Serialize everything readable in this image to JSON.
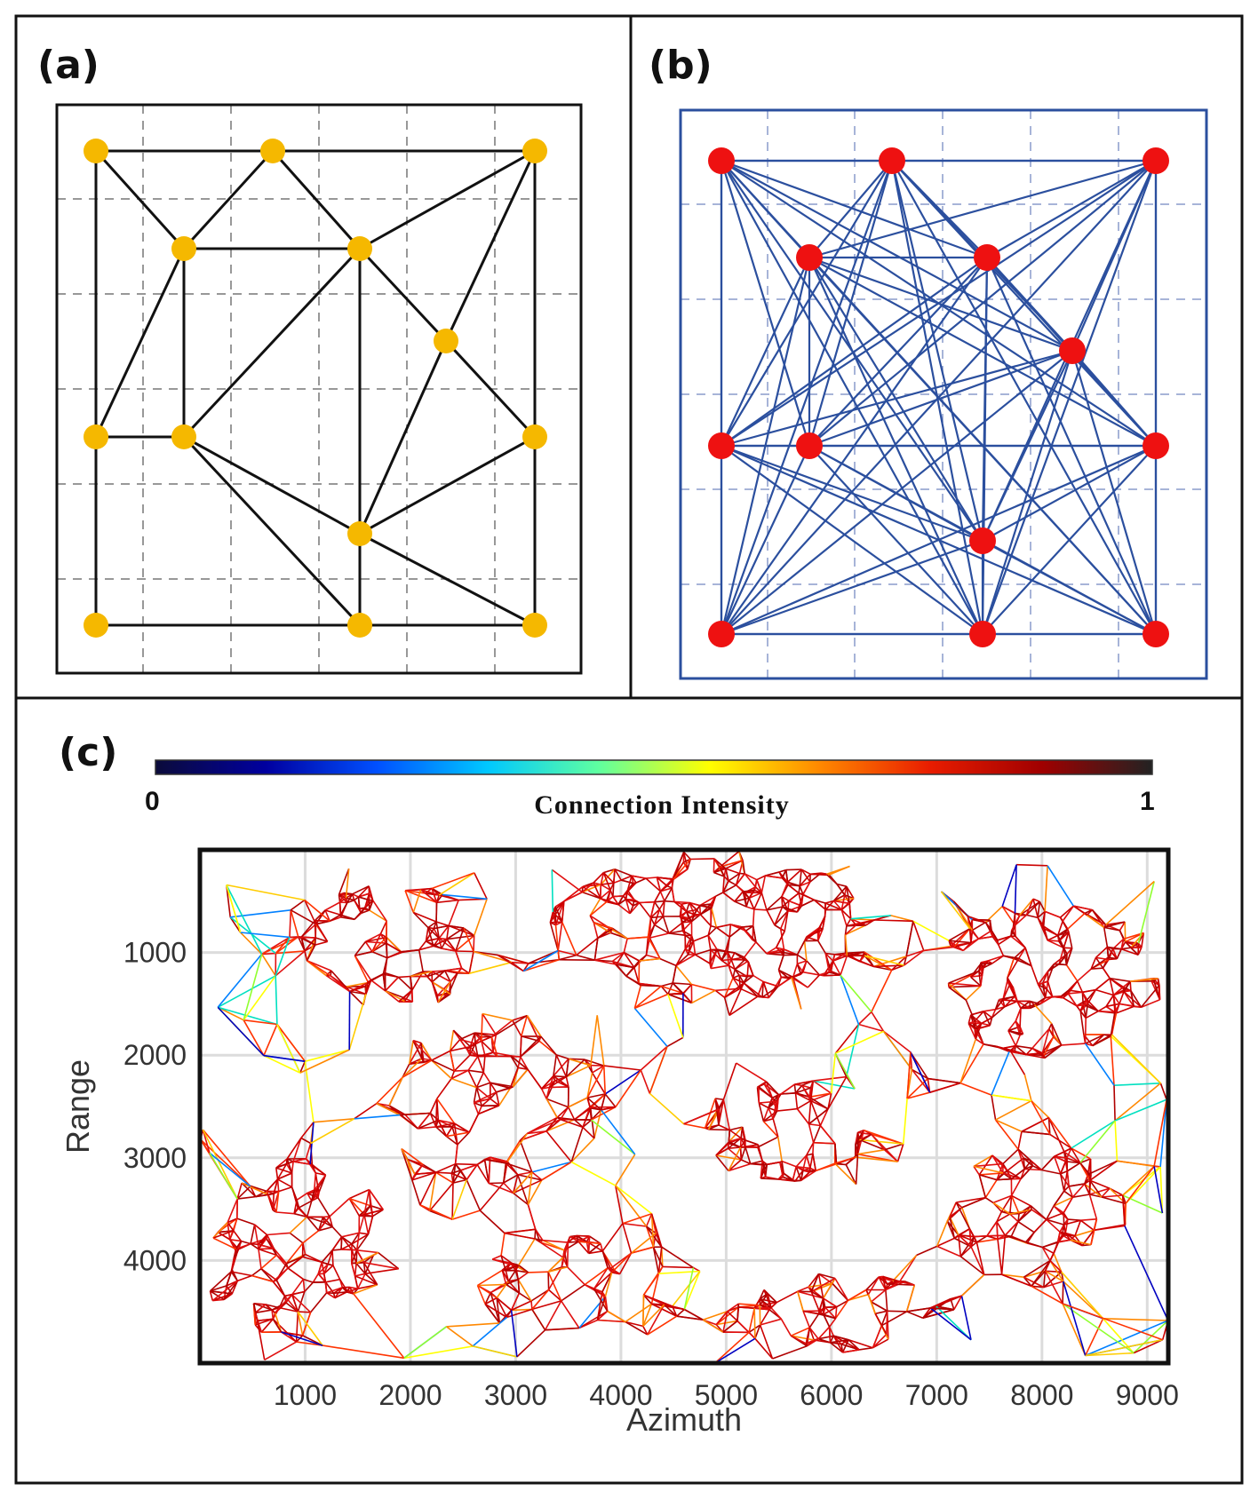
{
  "panels": {
    "a": {
      "label": "(a)",
      "line_color": "#111111",
      "node_color": "#f5b800"
    },
    "b": {
      "label": "(b)",
      "line_color": "#2b4f9e",
      "node_color": "#ee1111"
    },
    "c": {
      "label": "(c)"
    }
  },
  "colorbar": {
    "title": "Connection Intensity",
    "min_label": "0",
    "max_label": "1",
    "colormap": "jet",
    "stops": [
      "#0b0b3a",
      "#0000a0",
      "#0050ff",
      "#00c8ff",
      "#5fffa0",
      "#ffff00",
      "#ff8800",
      "#e81c00",
      "#a00000",
      "#222222"
    ]
  },
  "chart_data": {
    "type": "network",
    "title": "",
    "xlabel": "Azimuth",
    "ylabel": "Range",
    "xticks": [
      "1000",
      "2000",
      "3000",
      "4000",
      "5000",
      "6000",
      "7000",
      "8000",
      "9000"
    ],
    "yticks": [
      "1000",
      "2000",
      "3000",
      "4000"
    ],
    "xlim": [
      0,
      9200
    ],
    "ylim": [
      5000,
      0
    ],
    "edge_colors": [
      "#cc0000",
      "#e01010",
      "#b00000",
      "#ff3300",
      "#ff8800",
      "#ffcc00",
      "#ffff00",
      "#90ff30",
      "#00e0c0",
      "#0080ff",
      "#0000c0"
    ]
  }
}
